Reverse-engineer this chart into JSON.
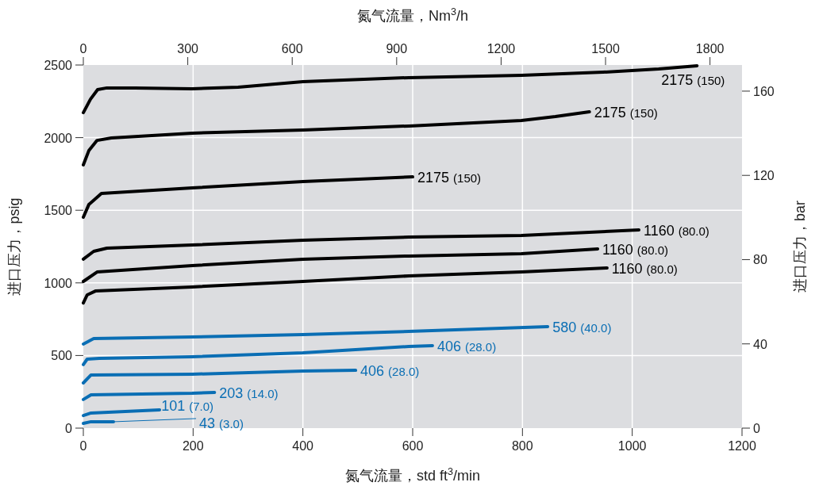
{
  "chart_data": {
    "type": "line",
    "xlabel": "氮气流量，std ft$^{3}$/min",
    "x2label": "氮气流量，Nm$^{3}$/h",
    "ylabel": "进口压力，psig",
    "y2label": "进口压力，bar",
    "xlim": [
      0,
      1200
    ],
    "xticks": [
      0,
      200,
      400,
      600,
      800,
      1000,
      1200
    ],
    "ylim": [
      0,
      2500
    ],
    "yticks": [
      0,
      500,
      1000,
      1500,
      2000,
      2500
    ],
    "x2lim": [
      0,
      1892
    ],
    "x2ticks": [
      0,
      300,
      600,
      900,
      1200,
      1500,
      1800
    ],
    "y2lim": [
      0,
      172.4
    ],
    "y2ticks": [
      0,
      40,
      80,
      120,
      160
    ],
    "grid": true,
    "series": [
      {
        "name": "2175 (150)",
        "color": "#000000",
        "x": [
          0,
          13,
          26,
          43,
          94,
          198,
          282,
          400,
          593,
          798,
          947,
          1048,
          1118
        ],
        "values": [
          2172,
          2265,
          2331,
          2342,
          2342,
          2336,
          2347,
          2385,
          2413,
          2429,
          2451,
          2473,
          2495
        ]
      },
      {
        "name": "2175 (150)",
        "color": "#000000",
        "x": [
          0,
          10,
          25,
          51,
          198,
          400,
          593,
          798,
          860,
          922
        ],
        "values": [
          1812,
          1910,
          1981,
          1998,
          2031,
          2052,
          2080,
          2118,
          2145,
          2178
        ]
      },
      {
        "name": "2175 (150)",
        "color": "#000000",
        "x": [
          0,
          10,
          33,
          198,
          400,
          600
        ],
        "values": [
          1452,
          1539,
          1616,
          1654,
          1698,
          1730
        ]
      },
      {
        "name": "1160 (80.0)",
        "color": "#000000",
        "x": [
          0,
          19,
          43,
          198,
          400,
          593,
          798,
          1012
        ],
        "values": [
          1163,
          1217,
          1239,
          1261,
          1294,
          1315,
          1326,
          1365
        ]
      },
      {
        "name": "1160 (80.0)",
        "color": "#000000",
        "x": [
          0,
          25,
          198,
          400,
          593,
          798,
          937
        ],
        "values": [
          1010,
          1075,
          1119,
          1163,
          1185,
          1201,
          1234
        ]
      },
      {
        "name": "1160 (80.0)",
        "color": "#000000",
        "x": [
          0,
          7,
          22,
          198,
          400,
          593,
          798,
          954
        ],
        "values": [
          862,
          917,
          944,
          972,
          1010,
          1048,
          1075,
          1103
        ]
      },
      {
        "name": "580 (40.0)",
        "color": "#0a6eb4",
        "x": [
          0,
          19,
          198,
          400,
          593,
          846
        ],
        "values": [
          579,
          617,
          628,
          644,
          666,
          699
        ]
      },
      {
        "name": "406 (28.0)",
        "color": "#0a6eb4",
        "x": [
          0,
          7,
          29,
          198,
          400,
          593,
          636
        ],
        "values": [
          437,
          475,
          480,
          491,
          519,
          562,
          568
        ]
      },
      {
        "name": "406 (28.0)",
        "color": "#0a6eb4",
        "x": [
          0,
          14,
          198,
          400,
          496
        ],
        "values": [
          311,
          366,
          371,
          393,
          398
        ]
      },
      {
        "name": "203 (14.0)",
        "color": "#0a6eb4",
        "x": [
          0,
          14,
          198,
          239
        ],
        "values": [
          197,
          229,
          240,
          246
        ]
      },
      {
        "name": "101 (7.0)",
        "color": "#0a6eb4",
        "x": [
          0,
          14,
          139
        ],
        "values": [
          87,
          104,
          126
        ]
      },
      {
        "name": "43 (3.0)",
        "color": "#0a6eb4",
        "x": [
          0,
          14,
          55
        ],
        "values": [
          33,
          44,
          44
        ]
      }
    ]
  }
}
